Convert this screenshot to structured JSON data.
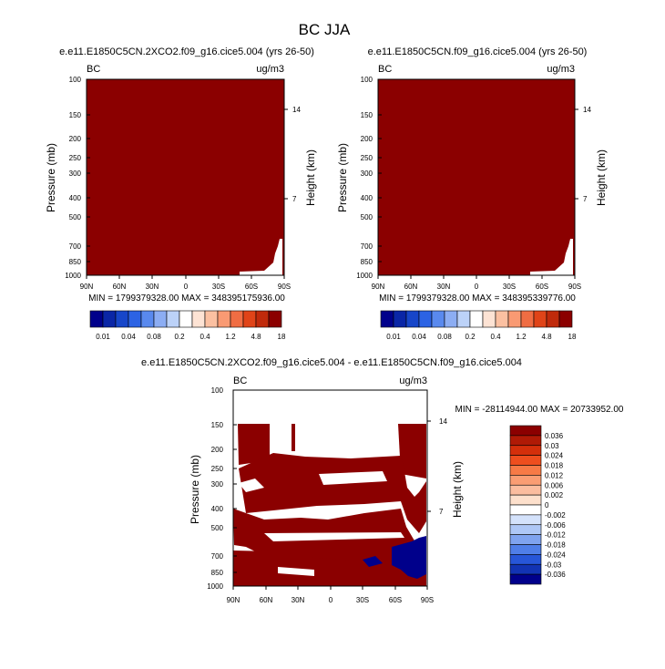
{
  "figure": {
    "title": "BC JJA"
  },
  "chart_data": [
    {
      "type": "contour",
      "panel": "top-left",
      "title": "e.e11.E1850C5CN.2XCO2.f09_g16.cice5.004 (yrs 26-50)",
      "variable": "BC",
      "units": "ug/m3",
      "xlabel": "",
      "ylabel": "Pressure (mb)",
      "ylabel_right": "Height (km)",
      "xticks": [
        "90N",
        "60N",
        "30N",
        "0",
        "30S",
        "60S",
        "90S"
      ],
      "yticks": [
        "100",
        "150",
        "200",
        "250",
        "300",
        "400",
        "500",
        "700",
        "850",
        "1000"
      ],
      "yticks_right": [
        "14",
        "7"
      ],
      "fill_color": "#8b0000",
      "min_max_text": "MIN = 1799379328.00   MAX = 348395175936.00"
    },
    {
      "type": "contour",
      "panel": "top-right",
      "title": "e.e11.E1850C5CN.f09_g16.cice5.004 (yrs 26-50)",
      "variable": "BC",
      "units": "ug/m3",
      "xlabel": "",
      "ylabel": "Pressure (mb)",
      "ylabel_right": "Height (km)",
      "xticks": [
        "90N",
        "60N",
        "30N",
        "0",
        "30S",
        "60S",
        "90S"
      ],
      "yticks": [
        "100",
        "150",
        "200",
        "250",
        "300",
        "400",
        "500",
        "700",
        "850",
        "1000"
      ],
      "yticks_right": [
        "14",
        "7"
      ],
      "fill_color": "#8b0000",
      "min_max_text": "MIN = 1799379328.00   MAX = 348395339776.00"
    },
    {
      "type": "contour",
      "panel": "bottom-difference",
      "title": "e.e11.E1850C5CN.2XCO2.f09_g16.cice5.004 - e.e11.E1850C5CN.f09_g16.cice5.004",
      "variable": "BC",
      "units": "ug/m3",
      "xlabel": "",
      "ylabel": "Pressure (mb)",
      "ylabel_right": "Height (km)",
      "xticks": [
        "90N",
        "60N",
        "30N",
        "0",
        "30S",
        "60S",
        "90S"
      ],
      "yticks": [
        "100",
        "150",
        "200",
        "250",
        "300",
        "400",
        "500",
        "700",
        "850",
        "1000"
      ],
      "yticks_right": [
        "14",
        "7"
      ],
      "positive_color": "#8b0000",
      "negative_color": "#00008b",
      "min_max_text": "MIN = -28114944.00   MAX = 20733952.00"
    }
  ],
  "colorbar_top": {
    "orientation": "horizontal",
    "colors": [
      "#00008b",
      "#0a26a6",
      "#1746c9",
      "#2c63e4",
      "#5989ee",
      "#8cadf3",
      "#bcd2f8",
      "#ffffff",
      "#fde3d4",
      "#fbc0a1",
      "#f99a73",
      "#f06d43",
      "#e04418",
      "#c02a0b",
      "#8b0000"
    ],
    "labels": [
      "0.01",
      "0.04",
      "0.08",
      "0.2",
      "0.4",
      "1.2",
      "4.8",
      "18"
    ]
  },
  "colorbar_diff": {
    "orientation": "vertical",
    "colors": [
      "#8b0000",
      "#b01a06",
      "#d42f0b",
      "#ee4e1e",
      "#f77a46",
      "#fa9d73",
      "#fbbd9f",
      "#fde0cc",
      "#ffffff",
      "#d4e2fb",
      "#aec7f6",
      "#7fa3ef",
      "#4f7ee8",
      "#2756d8",
      "#1233b3",
      "#00008b"
    ],
    "labels": [
      "0.036",
      "0.03",
      "0.024",
      "0.018",
      "0.012",
      "0.006",
      "0.002",
      "0",
      "-0.002",
      "-0.006",
      "-0.012",
      "-0.018",
      "-0.024",
      "-0.03",
      "-0.036"
    ]
  }
}
